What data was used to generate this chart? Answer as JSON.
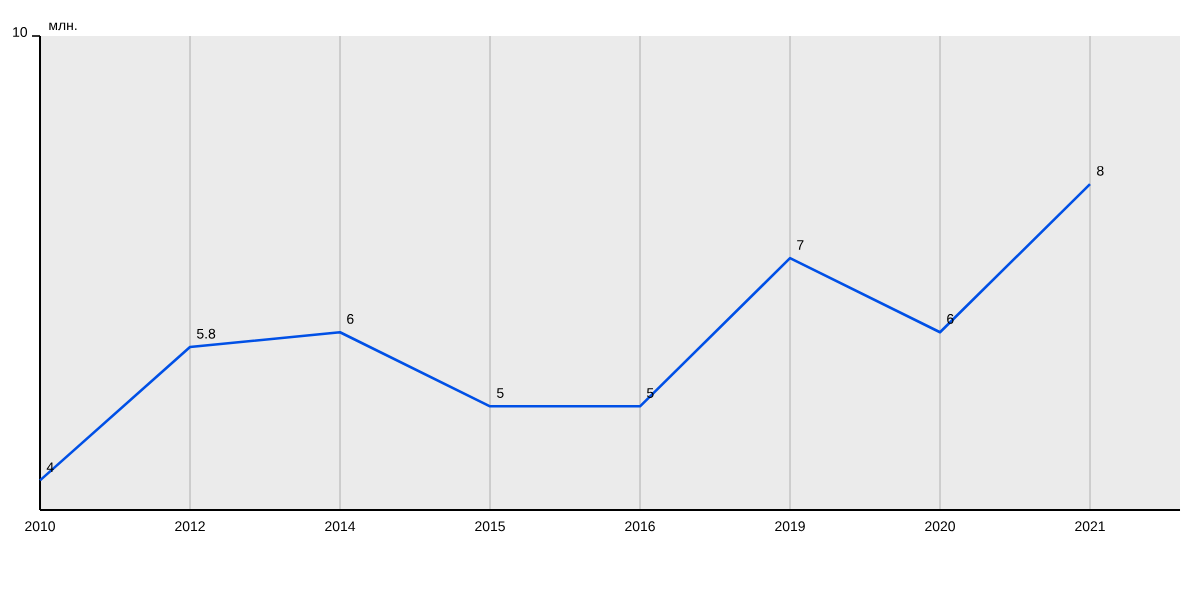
{
  "chart_data": {
    "type": "line",
    "ylabel": "млн.",
    "categories": [
      "2010",
      "2012",
      "2014",
      "2015",
      "2016",
      "2019",
      "2020",
      "2021"
    ],
    "values": [
      4,
      5.8,
      6,
      5,
      5,
      7,
      6,
      8
    ],
    "color": "#0050e6",
    "ylim": [
      3.6,
      10
    ],
    "annotations": [
      "10"
    ],
    "grid": "x",
    "data_labels": true,
    "marker": "none"
  }
}
